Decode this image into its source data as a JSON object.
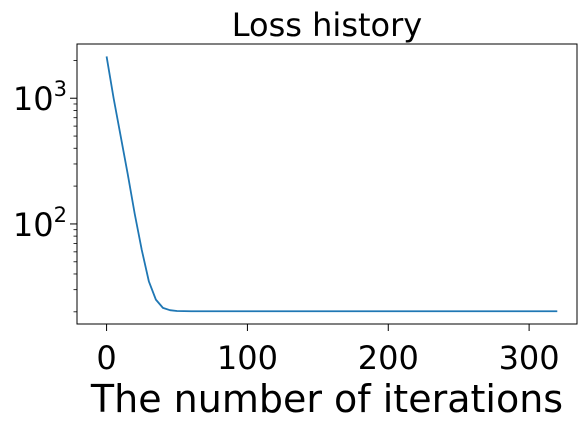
{
  "chart_data": {
    "type": "line",
    "title": "Loss history",
    "xlabel": "The number of iterations",
    "ylabel": "",
    "xlim": [
      -21,
      334
    ],
    "ylim": [
      16,
      2700
    ],
    "yscale": "log",
    "grid": false,
    "x_ticks": [
      {
        "value": 0,
        "label": "0"
      },
      {
        "value": 100,
        "label": "100"
      },
      {
        "value": 200,
        "label": "200"
      },
      {
        "value": 300,
        "label": "300"
      }
    ],
    "y_ticks": [
      {
        "value": 100,
        "base": "10",
        "exp": "2"
      },
      {
        "value": 1000,
        "base": "10",
        "exp": "3"
      }
    ],
    "series": [
      {
        "color": "#1f77b4",
        "x": [
          0,
          5,
          10,
          15,
          20,
          25,
          30,
          35,
          40,
          45,
          50,
          60,
          80,
          100,
          150,
          200,
          250,
          300,
          320
        ],
        "y": [
          2150,
          1000,
          500,
          250,
          120,
          62,
          35,
          25,
          21.5,
          20.6,
          20.3,
          20.2,
          20.2,
          20.2,
          20.2,
          20.2,
          20.2,
          20.2,
          20.2
        ]
      }
    ]
  }
}
